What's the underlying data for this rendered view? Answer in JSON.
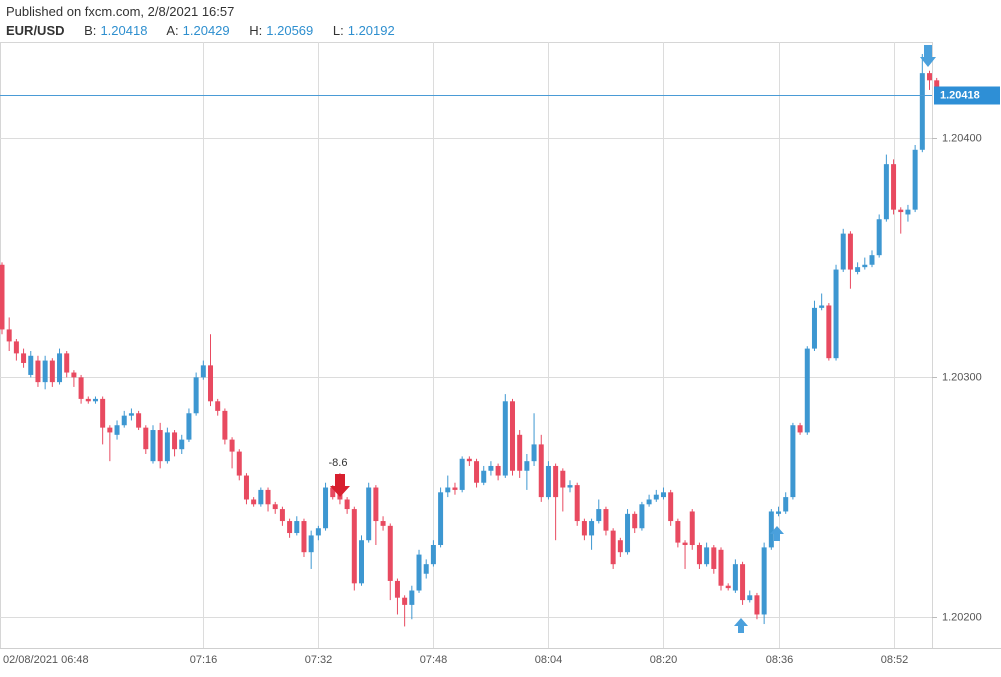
{
  "header": {
    "published": "Published on fxcm.com, 2/8/2021 16:57",
    "symbol": "EUR/USD",
    "bid_label": "B:",
    "bid": "1.20418",
    "ask_label": "A:",
    "ask": "1.20429",
    "high_label": "H:",
    "high": "1.20569",
    "low_label": "L:",
    "low": "1.20192"
  },
  "chart_data": {
    "type": "candlestick",
    "categories": [
      "02/08/2021 06:48",
      null,
      null,
      null,
      null,
      null,
      null,
      null,
      null,
      null,
      null,
      null,
      null,
      null,
      null,
      null,
      null,
      null,
      null,
      null,
      null,
      null,
      null,
      null,
      null,
      null,
      null,
      null,
      "07:16",
      null,
      null,
      null,
      null,
      null,
      null,
      null,
      null,
      null,
      null,
      null,
      null,
      null,
      null,
      null,
      "07:32",
      null,
      null,
      null,
      null,
      null,
      null,
      null,
      null,
      null,
      null,
      null,
      null,
      null,
      null,
      null,
      "07:48",
      null,
      null,
      null,
      null,
      null,
      null,
      null,
      null,
      null,
      null,
      null,
      null,
      null,
      null,
      null,
      "08:04",
      null,
      null,
      null,
      null,
      null,
      null,
      null,
      null,
      null,
      null,
      null,
      null,
      null,
      null,
      null,
      "08:20",
      null,
      null,
      null,
      null,
      null,
      null,
      null,
      null,
      null,
      null,
      null,
      null,
      null,
      null,
      null,
      "08:36",
      null,
      null,
      null,
      null,
      null,
      null,
      null,
      null,
      null,
      null,
      null,
      null,
      null,
      null,
      null,
      "08:52",
      null,
      null,
      null,
      null,
      null,
      null
    ],
    "open": [
      1.20347,
      1.2032,
      1.20315,
      1.2031,
      1.20301,
      1.20307,
      1.20298,
      1.20307,
      1.20298,
      1.2031,
      1.20302,
      1.203,
      1.20291,
      1.2029,
      1.20291,
      1.20279,
      1.20276,
      1.2028,
      1.20284,
      1.20285,
      1.20279,
      1.20265,
      1.20278,
      1.20265,
      1.20277,
      1.2027,
      1.20274,
      1.20285,
      1.203,
      1.20305,
      1.2029,
      1.20286,
      1.20274,
      1.20269,
      1.20259,
      1.20249,
      1.20247,
      1.20253,
      1.20247,
      1.20245,
      1.2024,
      1.20235,
      1.2024,
      1.20227,
      1.20234,
      1.20237,
      1.20254,
      1.20252,
      1.20249,
      1.20245,
      1.20214,
      1.20232,
      1.20254,
      1.2024,
      1.20238,
      1.20215,
      1.20208,
      1.20205,
      1.20211,
      1.20218,
      1.20222,
      1.2023,
      1.20252,
      1.20254,
      1.20253,
      1.20266,
      1.20265,
      1.20256,
      1.20261,
      1.20263,
      1.20259,
      1.2029,
      1.20276,
      1.20261,
      1.20265,
      1.20272,
      1.2025,
      1.20263,
      1.20261,
      1.20254,
      1.20255,
      1.2024,
      1.20234,
      1.2024,
      1.20245,
      1.20236,
      1.20232,
      1.20227,
      1.20243,
      1.20237,
      1.20247,
      1.20249,
      1.2025,
      1.20252,
      1.2024,
      1.20231,
      1.20244,
      1.2023,
      1.20222,
      1.20229,
      1.20228,
      1.20213,
      1.20211,
      1.20222,
      1.20207,
      1.20209,
      1.20201,
      1.20229,
      1.20243,
      1.20244,
      1.2025,
      1.2028,
      1.20277,
      1.20312,
      1.20329,
      1.2033,
      1.20308,
      1.20345,
      1.2036,
      1.20344,
      1.20346,
      1.20347,
      1.20351,
      1.20366,
      1.20389,
      1.2037,
      1.20368,
      1.2037,
      1.20395,
      1.20427,
      1.20424
    ],
    "high": [
      1.20348,
      1.20325,
      1.20316,
      1.20312,
      1.20311,
      1.20309,
      1.20309,
      1.20308,
      1.20312,
      1.20311,
      1.20303,
      1.20301,
      1.20292,
      1.20292,
      1.20292,
      1.2028,
      1.20282,
      1.20286,
      1.20287,
      1.20286,
      1.2028,
      1.2028,
      1.20281,
      1.20279,
      1.20278,
      1.20276,
      1.20287,
      1.20302,
      1.20307,
      1.20318,
      1.20291,
      1.20287,
      1.20275,
      1.2027,
      1.2026,
      1.2025,
      1.20254,
      1.20254,
      1.20248,
      1.20246,
      1.20241,
      1.20242,
      1.20241,
      1.20236,
      1.20238,
      1.20256,
      1.20255,
      1.2026,
      1.2025,
      1.20246,
      1.20234,
      1.20256,
      1.20255,
      1.20242,
      1.20239,
      1.20216,
      1.20209,
      1.20213,
      1.20228,
      1.20224,
      1.20232,
      1.20254,
      1.20259,
      1.20256,
      1.20267,
      1.20267,
      1.20266,
      1.20263,
      1.20265,
      1.20264,
      1.20293,
      1.20291,
      1.20278,
      1.20268,
      1.20285,
      1.20276,
      1.20265,
      1.20264,
      1.20262,
      1.20257,
      1.20256,
      1.20241,
      1.20241,
      1.20249,
      1.20246,
      1.20237,
      1.20233,
      1.20245,
      1.20244,
      1.20248,
      1.20251,
      1.20253,
      1.20254,
      1.20253,
      1.20241,
      1.20232,
      1.20245,
      1.20231,
      1.20231,
      1.2023,
      1.20229,
      1.20214,
      1.20224,
      1.20223,
      1.20211,
      1.2021,
      1.20231,
      1.20245,
      1.20246,
      1.20252,
      1.20281,
      1.20281,
      1.20313,
      1.20332,
      1.20335,
      1.20331,
      1.20347,
      1.20362,
      1.20361,
      1.20348,
      1.2035,
      1.20353,
      1.20368,
      1.20393,
      1.20391,
      1.20371,
      1.20372,
      1.20397,
      1.20435,
      1.20428,
      1.20425
    ],
    "low": [
      1.20318,
      1.20311,
      1.20307,
      1.20304,
      1.203,
      1.20296,
      1.20295,
      1.20296,
      1.20297,
      1.203,
      1.20296,
      1.20289,
      1.20289,
      1.20289,
      1.20272,
      1.20265,
      1.20274,
      1.20279,
      1.20282,
      1.20278,
      1.20268,
      1.20264,
      1.20262,
      1.20264,
      1.20267,
      1.20268,
      1.20273,
      1.20284,
      1.20299,
      1.20288,
      1.20284,
      1.20272,
      1.20262,
      1.20257,
      1.20247,
      1.20246,
      1.20246,
      1.20244,
      1.20243,
      1.20238,
      1.20233,
      1.20234,
      1.20225,
      1.2022,
      1.20232,
      1.20236,
      1.20249,
      1.20247,
      1.20243,
      1.20211,
      1.20213,
      1.20231,
      1.2023,
      1.20236,
      1.20207,
      1.20201,
      1.20196,
      1.20199,
      1.2021,
      1.20216,
      1.20221,
      1.20229,
      1.2025,
      1.20251,
      1.20252,
      1.20263,
      1.20254,
      1.20255,
      1.20259,
      1.20257,
      1.20258,
      1.20259,
      1.20258,
      1.20253,
      1.20263,
      1.20248,
      1.20249,
      1.20232,
      1.20244,
      1.20252,
      1.20238,
      1.20232,
      1.20228,
      1.20239,
      1.20234,
      1.2022,
      1.20225,
      1.20226,
      1.20235,
      1.20236,
      1.20246,
      1.20248,
      1.20249,
      1.20238,
      1.20229,
      1.2022,
      1.20228,
      1.2022,
      1.20221,
      1.20218,
      1.20211,
      1.20211,
      1.2021,
      1.20205,
      1.20206,
      1.20199,
      1.20197,
      1.20228,
      1.20242,
      1.20243,
      1.20249,
      1.20276,
      1.20276,
      1.20311,
      1.20328,
      1.20307,
      1.20307,
      1.20344,
      1.20337,
      1.20343,
      1.20345,
      1.20346,
      1.2035,
      1.20365,
      1.20368,
      1.2036,
      1.20365,
      1.20369,
      1.20394,
      1.2042,
      1.20415
    ],
    "close": [
      1.2032,
      1.20315,
      1.2031,
      1.20306,
      1.20309,
      1.20298,
      1.20307,
      1.20298,
      1.2031,
      1.20302,
      1.203,
      1.20291,
      1.2029,
      1.20291,
      1.20279,
      1.20277,
      1.2028,
      1.20284,
      1.20285,
      1.20279,
      1.2027,
      1.20278,
      1.20265,
      1.20277,
      1.2027,
      1.20274,
      1.20285,
      1.203,
      1.20305,
      1.2029,
      1.20286,
      1.20274,
      1.20269,
      1.20259,
      1.20249,
      1.20247,
      1.20253,
      1.20247,
      1.20245,
      1.2024,
      1.20235,
      1.2024,
      1.20227,
      1.20234,
      1.20237,
      1.20254,
      1.2025,
      1.20249,
      1.20245,
      1.20214,
      1.20232,
      1.20254,
      1.2024,
      1.20238,
      1.20215,
      1.20208,
      1.20205,
      1.20211,
      1.20226,
      1.20222,
      1.2023,
      1.20252,
      1.20254,
      1.20253,
      1.20266,
      1.20265,
      1.20256,
      1.20261,
      1.20263,
      1.20259,
      1.2029,
      1.20261,
      1.20261,
      1.20265,
      1.20272,
      1.2025,
      1.20263,
      1.2025,
      1.20254,
      1.20255,
      1.2024,
      1.20234,
      1.2024,
      1.20245,
      1.20236,
      1.20222,
      1.20227,
      1.20243,
      1.20237,
      1.20247,
      1.20249,
      1.20251,
      1.20252,
      1.2024,
      1.20231,
      1.2023,
      1.2023,
      1.20222,
      1.20229,
      1.2022,
      1.20213,
      1.20212,
      1.20222,
      1.20207,
      1.20209,
      1.20201,
      1.20229,
      1.20244,
      1.20244,
      1.2025,
      1.2028,
      1.20277,
      1.20312,
      1.20329,
      1.2033,
      1.20308,
      1.20345,
      1.2036,
      1.20345,
      1.20346,
      1.20347,
      1.20351,
      1.20366,
      1.20389,
      1.2037,
      1.20369,
      1.2037,
      1.20395,
      1.20427,
      1.20424,
      1.20418
    ],
    "up_color": "#3d97d1",
    "down_color": "#e84a60",
    "ylim": [
      1.20187,
      1.2044
    ],
    "yticks": [
      {
        "value": 1.202,
        "label": "1.20200"
      },
      {
        "value": 1.203,
        "label": "1.20300"
      },
      {
        "value": 1.204,
        "label": "1.20400"
      }
    ],
    "grid": true,
    "last_price": 1.20418,
    "annotation": "-8.6"
  }
}
